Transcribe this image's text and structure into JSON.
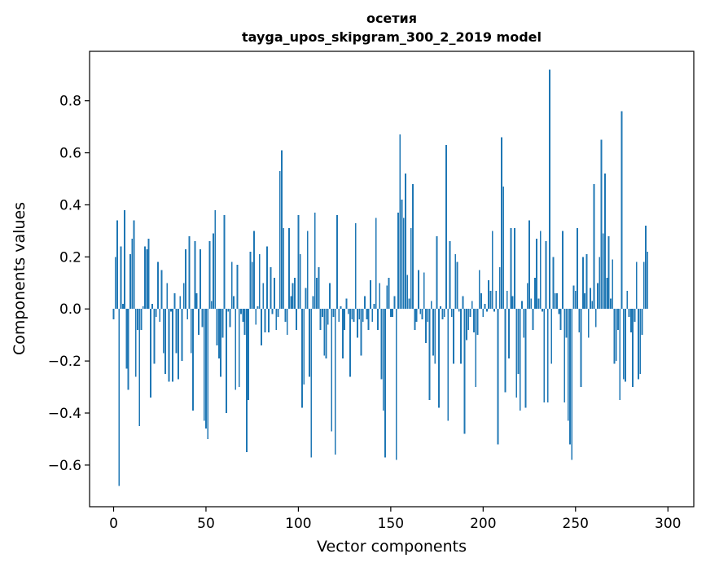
{
  "chart_data": {
    "type": "bar",
    "title": "осетия",
    "subtitle": "tayga_upos_skipgram_300_2_2019 model",
    "xlabel": "Vector components",
    "ylabel": "Components values",
    "xlim": [
      -13,
      314
    ],
    "ylim": [
      -0.76,
      0.99
    ],
    "xticks": [
      0,
      50,
      100,
      150,
      200,
      250,
      300
    ],
    "yticks": [
      -0.6,
      -0.4,
      -0.2,
      0.0,
      0.2,
      0.4,
      0.6,
      0.8
    ],
    "ytick_labels": [
      "−0.6",
      "−0.4",
      "−0.2",
      "0.0",
      "0.2",
      "0.4",
      "0.6",
      "0.8"
    ],
    "grid": false,
    "bar_color": "#1f77b4",
    "values": [
      -0.04,
      0.2,
      0.34,
      -0.68,
      0.24,
      0.02,
      0.38,
      -0.23,
      -0.31,
      0.21,
      0.27,
      0.34,
      -0.26,
      -0.08,
      -0.45,
      -0.08,
      0.01,
      0.24,
      0.23,
      0.27,
      -0.34,
      0.02,
      -0.21,
      -0.03,
      0.18,
      -0.05,
      0.15,
      -0.17,
      -0.25,
      0.1,
      -0.28,
      -0.01,
      -0.28,
      0.06,
      -0.17,
      -0.27,
      0.05,
      -0.2,
      0.1,
      0.23,
      -0.04,
      0.28,
      -0.17,
      -0.39,
      0.26,
      0.06,
      -0.1,
      0.23,
      -0.07,
      -0.43,
      -0.46,
      -0.5,
      0.26,
      0.03,
      0.29,
      0.38,
      -0.14,
      -0.19,
      -0.26,
      -0.11,
      0.36,
      -0.4,
      -0.01,
      -0.07,
      0.18,
      0.05,
      -0.31,
      0.17,
      -0.3,
      -0.02,
      -0.05,
      -0.1,
      -0.55,
      -0.35,
      0.22,
      0.18,
      0.3,
      -0.06,
      0.01,
      0.21,
      -0.14,
      0.1,
      -0.09,
      0.24,
      -0.09,
      0.16,
      -0.02,
      0.12,
      -0.08,
      -0.03,
      0.53,
      0.61,
      0.31,
      -0.05,
      -0.1,
      0.31,
      0.05,
      0.1,
      0.12,
      -0.08,
      0.36,
      0.21,
      -0.38,
      -0.29,
      0.08,
      0.3,
      -0.26,
      -0.57,
      0.05,
      0.37,
      0.12,
      0.16,
      -0.08,
      -0.03,
      -0.18,
      -0.19,
      -0.06,
      0.1,
      -0.47,
      -0.03,
      -0.56,
      0.36,
      -0.05,
      0.01,
      -0.19,
      -0.08,
      0.04,
      -0.02,
      -0.26,
      -0.04,
      -0.05,
      0.33,
      -0.11,
      -0.04,
      -0.18,
      -0.05,
      0.05,
      -0.04,
      -0.08,
      0.11,
      -0.05,
      0.02,
      0.35,
      -0.08,
      0.1,
      -0.27,
      -0.39,
      -0.57,
      0.09,
      0.12,
      -0.03,
      -0.03,
      0.05,
      -0.58,
      0.37,
      0.67,
      0.42,
      0.35,
      0.52,
      0.13,
      0.04,
      0.31,
      0.48,
      -0.08,
      -0.05,
      0.15,
      -0.02,
      -0.04,
      0.14,
      -0.13,
      -0.05,
      -0.35,
      0.03,
      -0.18,
      -0.21,
      0.28,
      -0.38,
      0.01,
      -0.04,
      -0.03,
      0.63,
      -0.43,
      0.26,
      -0.03,
      -0.21,
      0.21,
      0.18,
      -0.01,
      -0.21,
      0.05,
      -0.48,
      -0.12,
      -0.08,
      -0.03,
      0.03,
      -0.09,
      -0.3,
      -0.1,
      0.15,
      0.06,
      -0.03,
      0.02,
      -0.01,
      0.11,
      0.07,
      0.3,
      -0.01,
      0.07,
      -0.52,
      0.16,
      0.66,
      0.47,
      -0.32,
      0.07,
      -0.19,
      0.31,
      0.05,
      0.31,
      -0.34,
      -0.25,
      -0.39,
      0.03,
      -0.11,
      -0.38,
      0.1,
      0.34,
      0.04,
      -0.08,
      0.12,
      0.27,
      0.04,
      0.3,
      -0.01,
      -0.36,
      0.26,
      -0.36,
      0.92,
      -0.21,
      0.2,
      0.06,
      0.06,
      -0.02,
      -0.08,
      0.3,
      -0.36,
      -0.11,
      -0.43,
      -0.52,
      -0.58,
      0.09,
      0.07,
      0.31,
      -0.09,
      -0.3,
      0.2,
      0.06,
      0.21,
      -0.11,
      0.08,
      0.03,
      0.48,
      -0.07,
      0.1,
      0.2,
      0.65,
      0.29,
      0.52,
      0.12,
      0.28,
      0.04,
      0.19,
      -0.21,
      -0.2,
      -0.08,
      -0.35,
      0.76,
      -0.27,
      -0.28,
      0.07,
      -0.03,
      -0.09,
      -0.3,
      -0.05,
      0.18,
      -0.27,
      -0.25,
      -0.1,
      0.18,
      0.32,
      0.22
    ]
  }
}
